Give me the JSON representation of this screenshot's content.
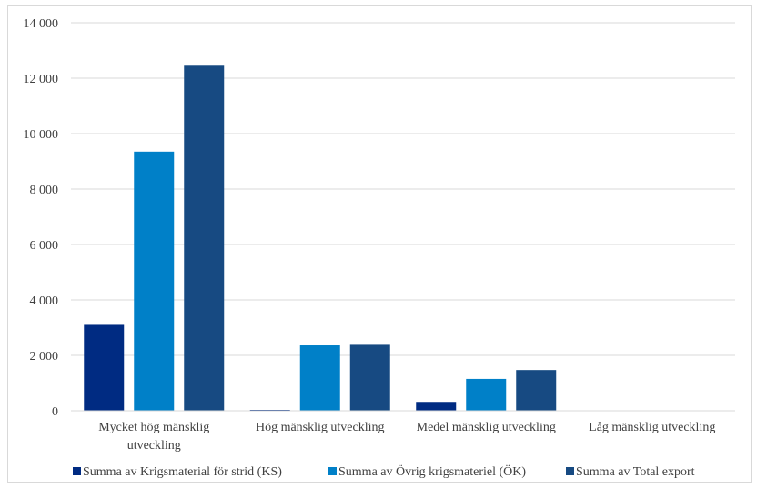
{
  "chart_data": {
    "type": "bar",
    "title": "",
    "xlabel": "",
    "ylabel": "",
    "ylim": [
      0,
      14000
    ],
    "yticks": [
      0,
      2000,
      4000,
      6000,
      8000,
      10000,
      12000,
      14000
    ],
    "ytick_labels": [
      "0",
      "2 000",
      "4 000",
      "6 000",
      "8 000",
      "10 000",
      "12 000",
      "14 000"
    ],
    "grid": true,
    "legend_position": "bottom",
    "categories": [
      [
        "Mycket hög mänsklig",
        "utveckling"
      ],
      [
        "Hög mänsklig utveckling"
      ],
      [
        "Medel mänsklig utveckling"
      ],
      [
        "Låg mänsklig utveckling"
      ]
    ],
    "series": [
      {
        "name": "Summa av Krigsmaterial för strid (KS)",
        "color": "#002b82",
        "values": [
          3100,
          20,
          320,
          0
        ]
      },
      {
        "name": "Summa av Övrig krigsmateriel (ÖK)",
        "color": "#0080c8",
        "values": [
          9350,
          2360,
          1150,
          0
        ]
      },
      {
        "name": "Summa av Total export",
        "color": "#174a82",
        "values": [
          12450,
          2380,
          1470,
          0
        ]
      }
    ]
  }
}
